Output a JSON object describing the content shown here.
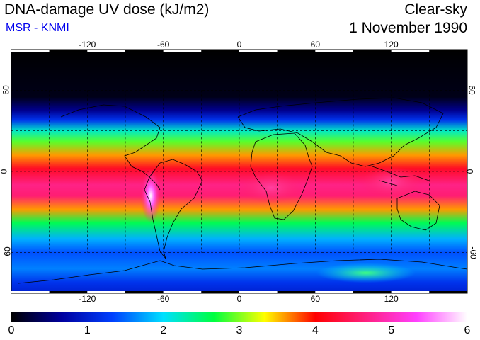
{
  "header": {
    "title": "DNA-damage UV dose (kJ/m2)",
    "subtitle": "MSR - KNMI",
    "sky_condition": "Clear-sky",
    "date": "1 November 1990"
  },
  "map": {
    "lon_ticks": [
      "-120",
      "-60",
      "0",
      "60",
      "120"
    ],
    "lat_ticks": [
      "60",
      "0",
      "-60"
    ],
    "lon_tick_values": [
      -120,
      -60,
      0,
      60,
      120
    ],
    "lat_tick_values": [
      60,
      0,
      -60
    ],
    "lon_range": [
      -180,
      180
    ],
    "lat_range": [
      -90,
      90
    ],
    "gridlines": true,
    "gridline_style": "dashed",
    "bands_by_latitude": [
      {
        "lat": 90,
        "value": 0.0
      },
      {
        "lat": 55,
        "value": 0.1
      },
      {
        "lat": 45,
        "value": 0.6
      },
      {
        "lat": 38,
        "value": 1.2
      },
      {
        "lat": 30,
        "value": 2.2
      },
      {
        "lat": 22,
        "value": 2.9
      },
      {
        "lat": 12,
        "value": 3.6
      },
      {
        "lat": 2,
        "value": 4.2
      },
      {
        "lat": -10,
        "value": 4.7
      },
      {
        "lat": -18,
        "value": 4.6
      },
      {
        "lat": -28,
        "value": 3.6
      },
      {
        "lat": -38,
        "value": 2.6
      },
      {
        "lat": -50,
        "value": 1.8
      },
      {
        "lat": -60,
        "value": 1.4
      },
      {
        "lat": -72,
        "value": 1.6
      },
      {
        "lat": -82,
        "value": 1.2
      },
      {
        "lat": -90,
        "value": 1.0
      }
    ],
    "hotspots": [
      {
        "name": "andes",
        "lon": -70,
        "lat": -18,
        "value": 6.0
      },
      {
        "name": "africa-south",
        "lon": 25,
        "lat": -12,
        "value": 4.9
      },
      {
        "name": "indonesia",
        "lon": 120,
        "lat": -8,
        "value": 5.2
      },
      {
        "name": "antarctica",
        "lon": 100,
        "lat": -75,
        "value": 2.4
      }
    ]
  },
  "colorbar": {
    "min": 0,
    "max": 6,
    "labels": [
      "0",
      "1",
      "2",
      "3",
      "4",
      "5",
      "6"
    ],
    "label_values": [
      0,
      1,
      2,
      3,
      4,
      5,
      6
    ],
    "colors": [
      "#000000",
      "#0000a0",
      "#0040ff",
      "#00e0ff",
      "#00ff40",
      "#ffff00",
      "#ff0000",
      "#ff2080",
      "#ff40ff",
      "#ffffff"
    ]
  }
}
